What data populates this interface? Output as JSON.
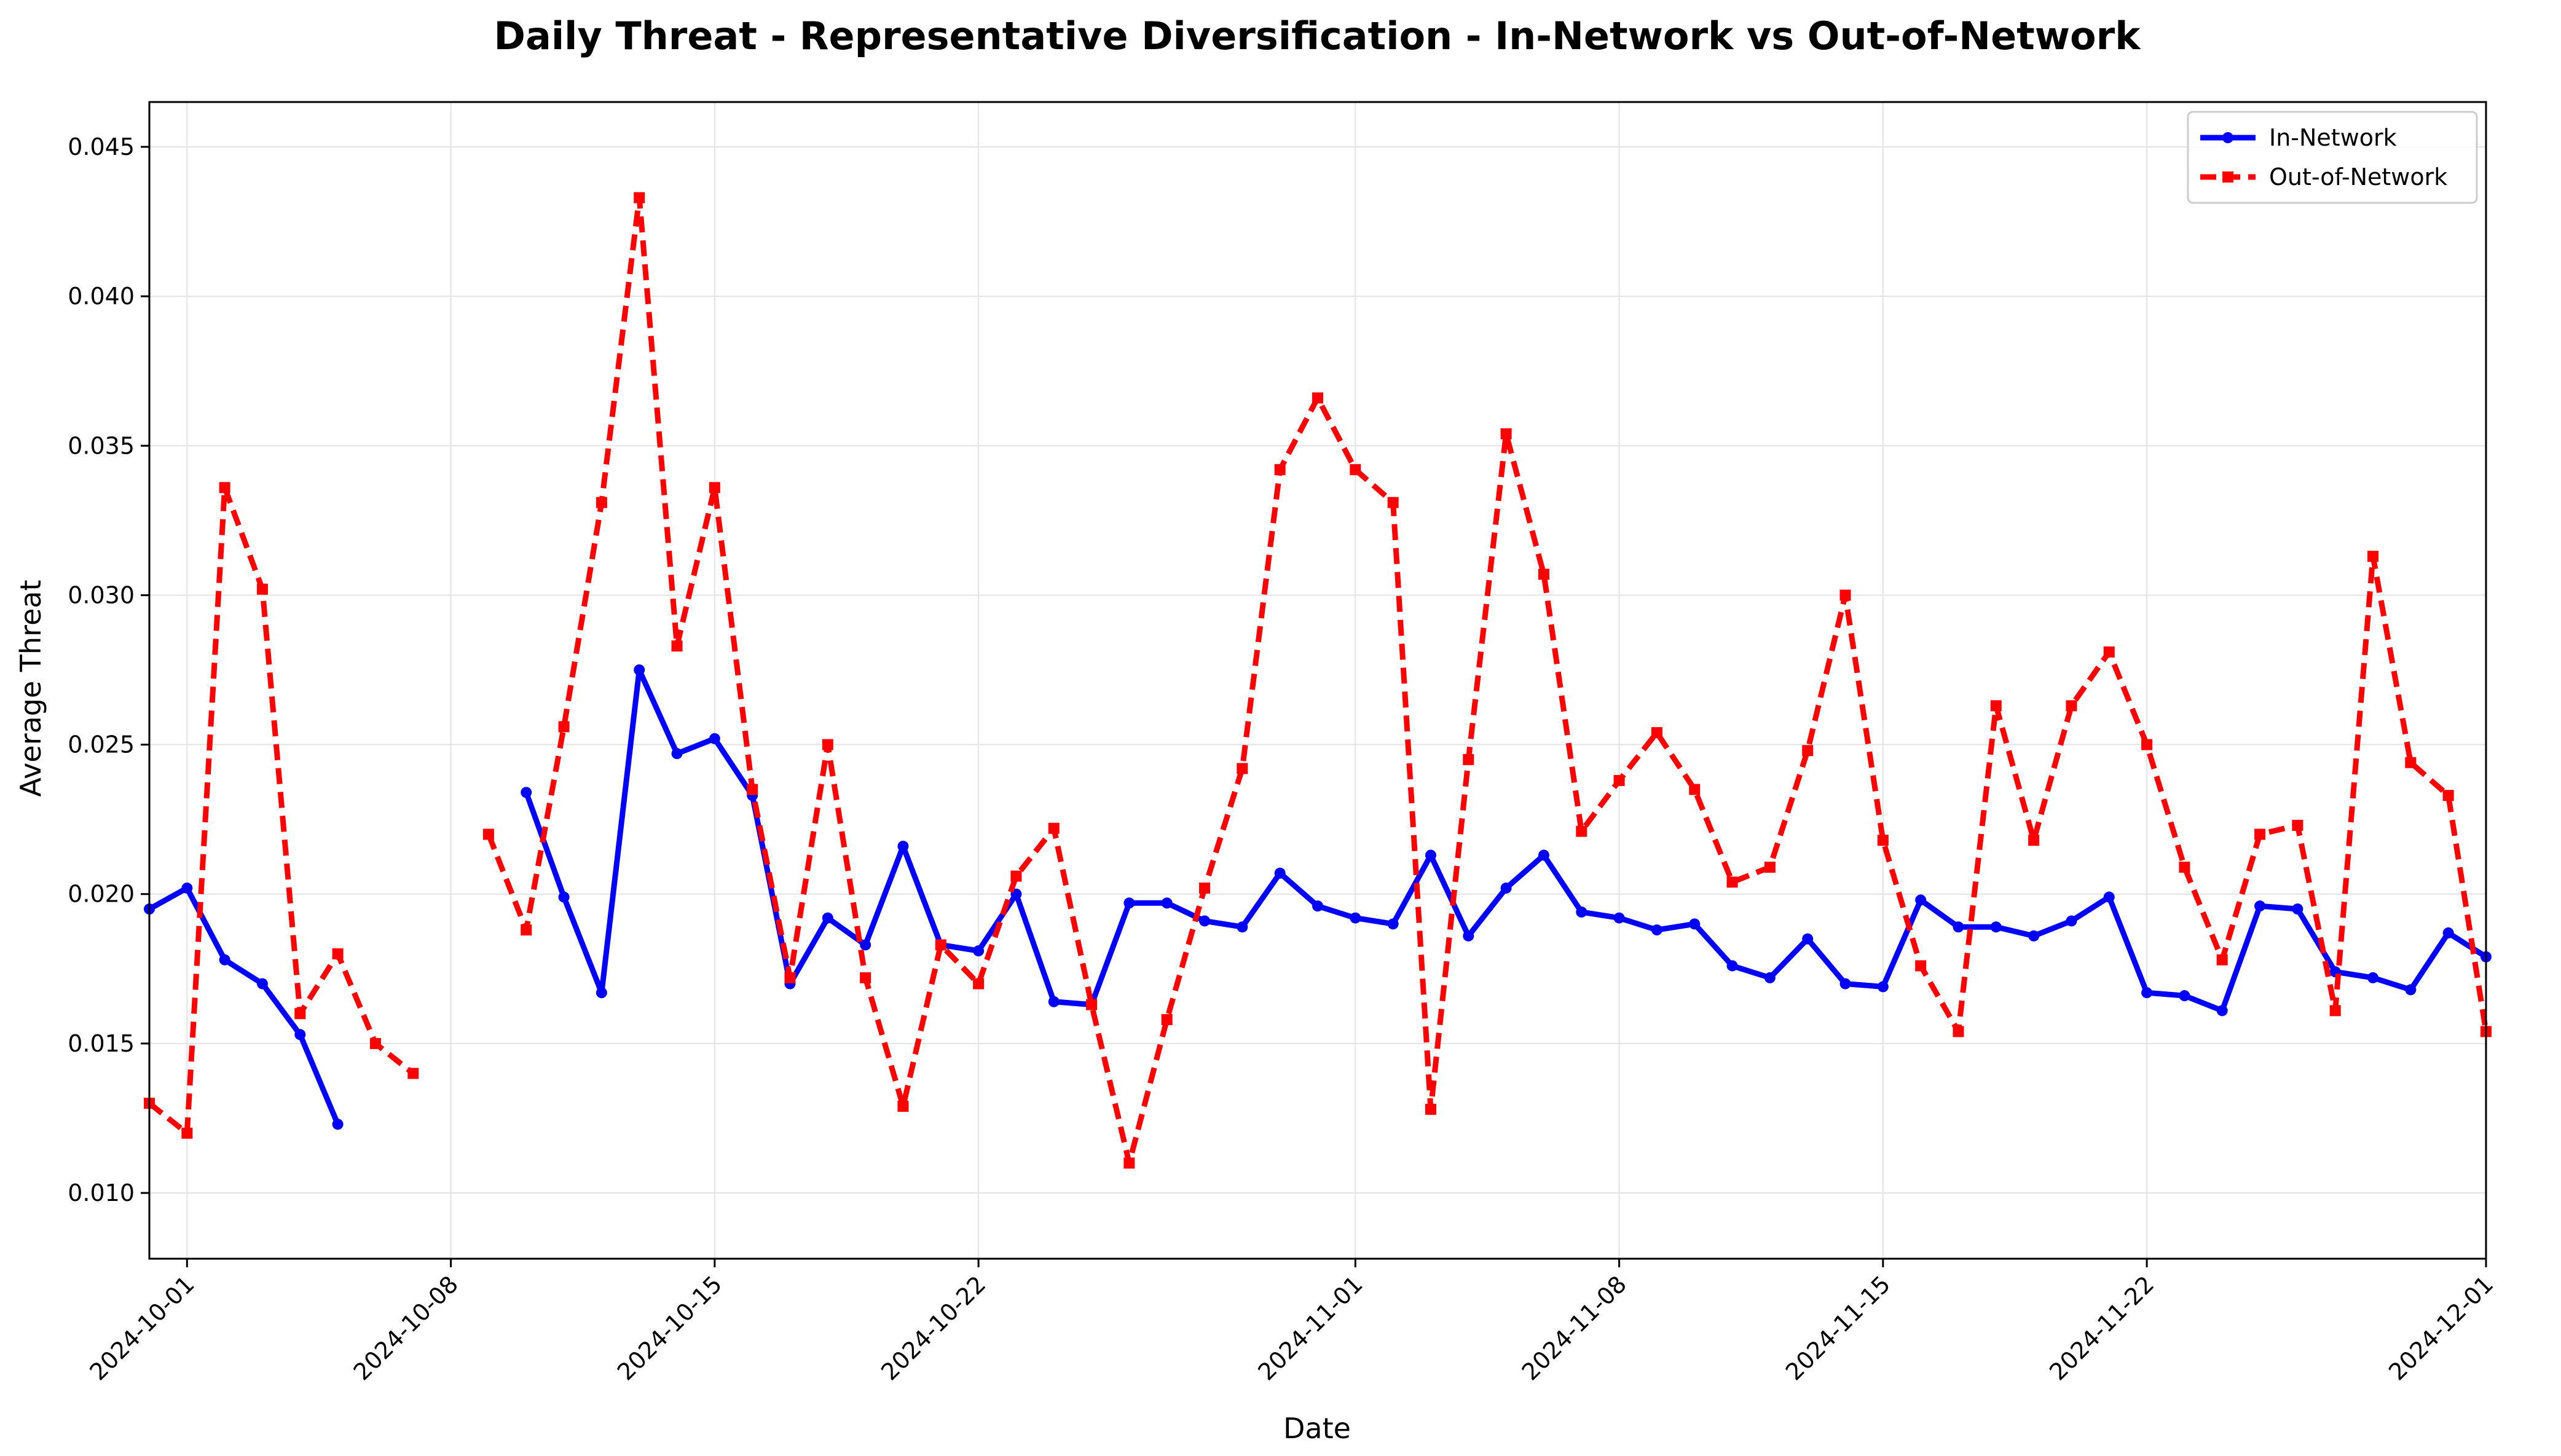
{
  "chart_data": {
    "type": "line",
    "title": "Daily Threat - Representative Diversification - In-Network vs Out-of-Network",
    "xlabel": "Date",
    "ylabel": "Average Threat",
    "x_range": [
      "2024-09-30",
      "2024-12-01"
    ],
    "ylim": [
      0.0078,
      0.0465
    ],
    "y_ticks": [
      "0.010",
      "0.015",
      "0.020",
      "0.025",
      "0.030",
      "0.035",
      "0.040",
      "0.045"
    ],
    "x_ticks": [
      "2024-10-01",
      "2024-10-08",
      "2024-10-15",
      "2024-10-22",
      "2024-11-01",
      "2024-11-08",
      "2024-11-15",
      "2024-11-22",
      "2024-12-01"
    ],
    "grid": true,
    "legend_position": "top-right",
    "series": [
      {
        "name": "In-Network",
        "color": "#0000ff",
        "line_style": "solid",
        "marker": "circle",
        "points": [
          [
            "2024-09-30",
            0.0195
          ],
          [
            "2024-10-01",
            0.0202
          ],
          [
            "2024-10-02",
            0.0178
          ],
          [
            "2024-10-03",
            0.017
          ],
          [
            "2024-10-04",
            0.0153
          ],
          [
            "2024-10-05",
            0.0123
          ],
          [
            "2024-10-06",
            null
          ],
          [
            "2024-10-07",
            null
          ],
          [
            "2024-10-08",
            null
          ],
          [
            "2024-10-09",
            null
          ],
          [
            "2024-10-10",
            0.0234
          ],
          [
            "2024-10-11",
            0.0199
          ],
          [
            "2024-10-12",
            0.0167
          ],
          [
            "2024-10-13",
            0.0275
          ],
          [
            "2024-10-14",
            0.0247
          ],
          [
            "2024-10-15",
            0.0252
          ],
          [
            "2024-10-16",
            0.0233
          ],
          [
            "2024-10-17",
            0.017
          ],
          [
            "2024-10-18",
            0.0192
          ],
          [
            "2024-10-19",
            0.0183
          ],
          [
            "2024-10-20",
            0.0216
          ],
          [
            "2024-10-21",
            0.0183
          ],
          [
            "2024-10-22",
            0.0181
          ],
          [
            "2024-10-23",
            0.02
          ],
          [
            "2024-10-24",
            0.0164
          ],
          [
            "2024-10-25",
            0.0163
          ],
          [
            "2024-10-26",
            0.0197
          ],
          [
            "2024-10-27",
            0.0197
          ],
          [
            "2024-10-28",
            0.0191
          ],
          [
            "2024-10-29",
            0.0189
          ],
          [
            "2024-10-30",
            0.0207
          ],
          [
            "2024-10-31",
            0.0196
          ],
          [
            "2024-11-01",
            0.0192
          ],
          [
            "2024-11-02",
            0.019
          ],
          [
            "2024-11-03",
            0.0213
          ],
          [
            "2024-11-04",
            0.0186
          ],
          [
            "2024-11-05",
            0.0202
          ],
          [
            "2024-11-06",
            0.0213
          ],
          [
            "2024-11-07",
            0.0194
          ],
          [
            "2024-11-08",
            0.0192
          ],
          [
            "2024-11-09",
            0.0188
          ],
          [
            "2024-11-10",
            0.019
          ],
          [
            "2024-11-11",
            0.0176
          ],
          [
            "2024-11-12",
            0.0172
          ],
          [
            "2024-11-13",
            0.0185
          ],
          [
            "2024-11-14",
            0.017
          ],
          [
            "2024-11-15",
            0.0169
          ],
          [
            "2024-11-16",
            0.0198
          ],
          [
            "2024-11-17",
            0.0189
          ],
          [
            "2024-11-18",
            0.0189
          ],
          [
            "2024-11-19",
            0.0186
          ],
          [
            "2024-11-20",
            0.0191
          ],
          [
            "2024-11-21",
            0.0199
          ],
          [
            "2024-11-22",
            0.0167
          ],
          [
            "2024-11-23",
            0.0166
          ],
          [
            "2024-11-24",
            0.0161
          ],
          [
            "2024-11-25",
            0.0196
          ],
          [
            "2024-11-26",
            0.0195
          ],
          [
            "2024-11-27",
            0.0174
          ],
          [
            "2024-11-28",
            0.0172
          ],
          [
            "2024-11-29",
            0.0168
          ],
          [
            "2024-11-30",
            0.0187
          ],
          [
            "2024-12-01",
            0.0179
          ]
        ]
      },
      {
        "name": "Out-of-Network",
        "color": "#ff0000",
        "line_style": "dashed",
        "marker": "square",
        "points": [
          [
            "2024-09-30",
            0.013
          ],
          [
            "2024-10-01",
            0.012
          ],
          [
            "2024-10-02",
            0.0336
          ],
          [
            "2024-10-03",
            0.0302
          ],
          [
            "2024-10-04",
            0.016
          ],
          [
            "2024-10-05",
            0.018
          ],
          [
            "2024-10-06",
            0.015
          ],
          [
            "2024-10-07",
            0.014
          ],
          [
            "2024-10-08",
            null
          ],
          [
            "2024-10-09",
            0.022
          ],
          [
            "2024-10-10",
            0.0188
          ],
          [
            "2024-10-11",
            0.0256
          ],
          [
            "2024-10-12",
            0.0331
          ],
          [
            "2024-10-13",
            0.0433
          ],
          [
            "2024-10-14",
            0.0283
          ],
          [
            "2024-10-15",
            0.0336
          ],
          [
            "2024-10-16",
            0.0235
          ],
          [
            "2024-10-17",
            0.0172
          ],
          [
            "2024-10-18",
            0.025
          ],
          [
            "2024-10-19",
            0.0172
          ],
          [
            "2024-10-20",
            0.0129
          ],
          [
            "2024-10-21",
            0.0183
          ],
          [
            "2024-10-22",
            0.017
          ],
          [
            "2024-10-23",
            0.0206
          ],
          [
            "2024-10-24",
            0.0222
          ],
          [
            "2024-10-25",
            0.0163
          ],
          [
            "2024-10-26",
            0.011
          ],
          [
            "2024-10-27",
            0.0158
          ],
          [
            "2024-10-28",
            0.0202
          ],
          [
            "2024-10-29",
            0.0242
          ],
          [
            "2024-10-30",
            0.0342
          ],
          [
            "2024-10-31",
            0.0366
          ],
          [
            "2024-11-01",
            0.0342
          ],
          [
            "2024-11-02",
            0.0331
          ],
          [
            "2024-11-03",
            0.0128
          ],
          [
            "2024-11-04",
            0.0245
          ],
          [
            "2024-11-05",
            0.0354
          ],
          [
            "2024-11-06",
            0.0307
          ],
          [
            "2024-11-07",
            0.0221
          ],
          [
            "2024-11-08",
            0.0238
          ],
          [
            "2024-11-09",
            0.0254
          ],
          [
            "2024-11-10",
            0.0235
          ],
          [
            "2024-11-11",
            0.0204
          ],
          [
            "2024-11-12",
            0.0209
          ],
          [
            "2024-11-13",
            0.0248
          ],
          [
            "2024-11-14",
            0.03
          ],
          [
            "2024-11-15",
            0.0218
          ],
          [
            "2024-11-16",
            0.0176
          ],
          [
            "2024-11-17",
            0.0154
          ],
          [
            "2024-11-18",
            0.0263
          ],
          [
            "2024-11-19",
            0.0218
          ],
          [
            "2024-11-20",
            0.0263
          ],
          [
            "2024-11-21",
            0.0281
          ],
          [
            "2024-11-22",
            0.025
          ],
          [
            "2024-11-23",
            0.0209
          ],
          [
            "2024-11-24",
            0.0178
          ],
          [
            "2024-11-25",
            0.022
          ],
          [
            "2024-11-26",
            0.0223
          ],
          [
            "2024-11-27",
            0.0161
          ],
          [
            "2024-11-28",
            0.0313
          ],
          [
            "2024-11-29",
            0.0244
          ],
          [
            "2024-11-30",
            0.0233
          ],
          [
            "2024-12-01",
            0.0154
          ]
        ]
      }
    ]
  }
}
